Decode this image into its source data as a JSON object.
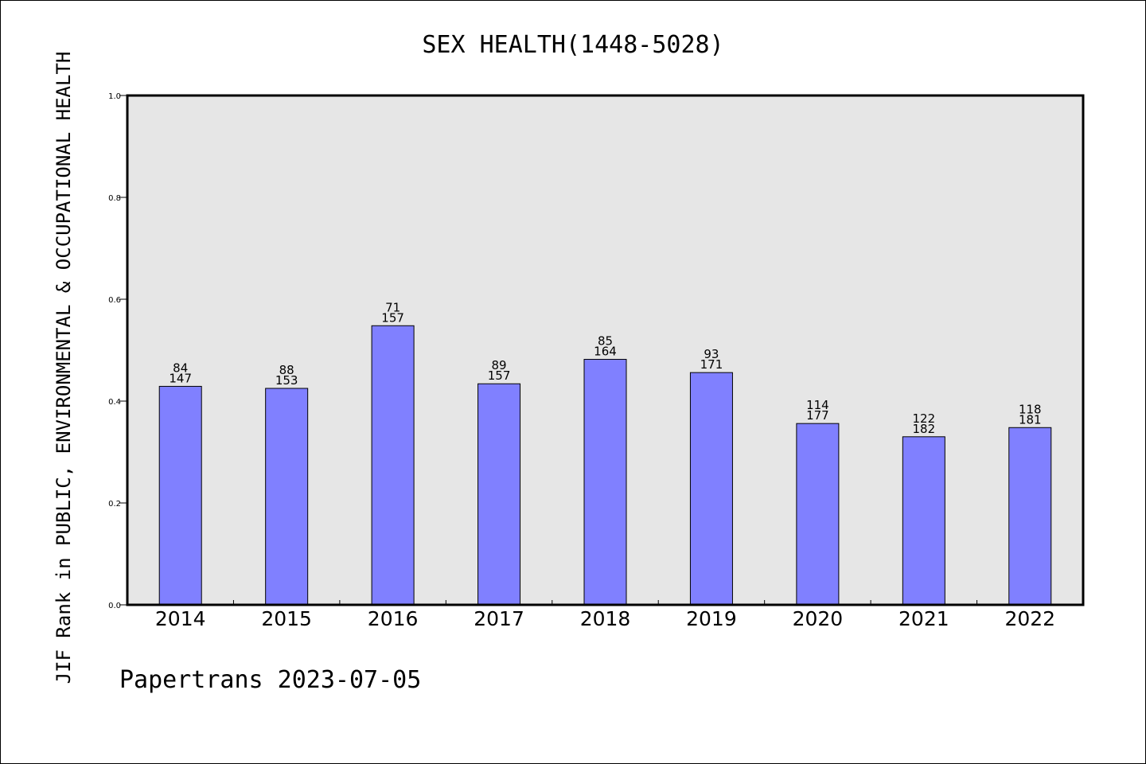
{
  "chart_data": {
    "type": "bar",
    "title": "SEX HEALTH(1448-5028)",
    "ylabel": "JIF Rank in PUBLIC, ENVIRONMENTAL & OCCUPATIONAL HEALTH",
    "xlabel": "",
    "categories": [
      "2014",
      "2015",
      "2016",
      "2017",
      "2018",
      "2019",
      "2020",
      "2021",
      "2022"
    ],
    "values": [
      0.429,
      0.425,
      0.548,
      0.434,
      0.482,
      0.456,
      0.356,
      0.33,
      0.348
    ],
    "rank": [
      "84",
      "88",
      "71",
      "89",
      "85",
      "93",
      "114",
      "122",
      "118"
    ],
    "total": [
      "147",
      "153",
      "157",
      "157",
      "164",
      "171",
      "177",
      "182",
      "181"
    ],
    "ylim": [
      0,
      1.0
    ],
    "yticks": [
      "0.0",
      "0.2",
      "0.4",
      "0.6",
      "0.8",
      "1.0"
    ],
    "grid": false,
    "bar_color": "#8080ff",
    "plot_background": "#e6e6e6"
  },
  "footer": "Papertrans 2023-07-05"
}
